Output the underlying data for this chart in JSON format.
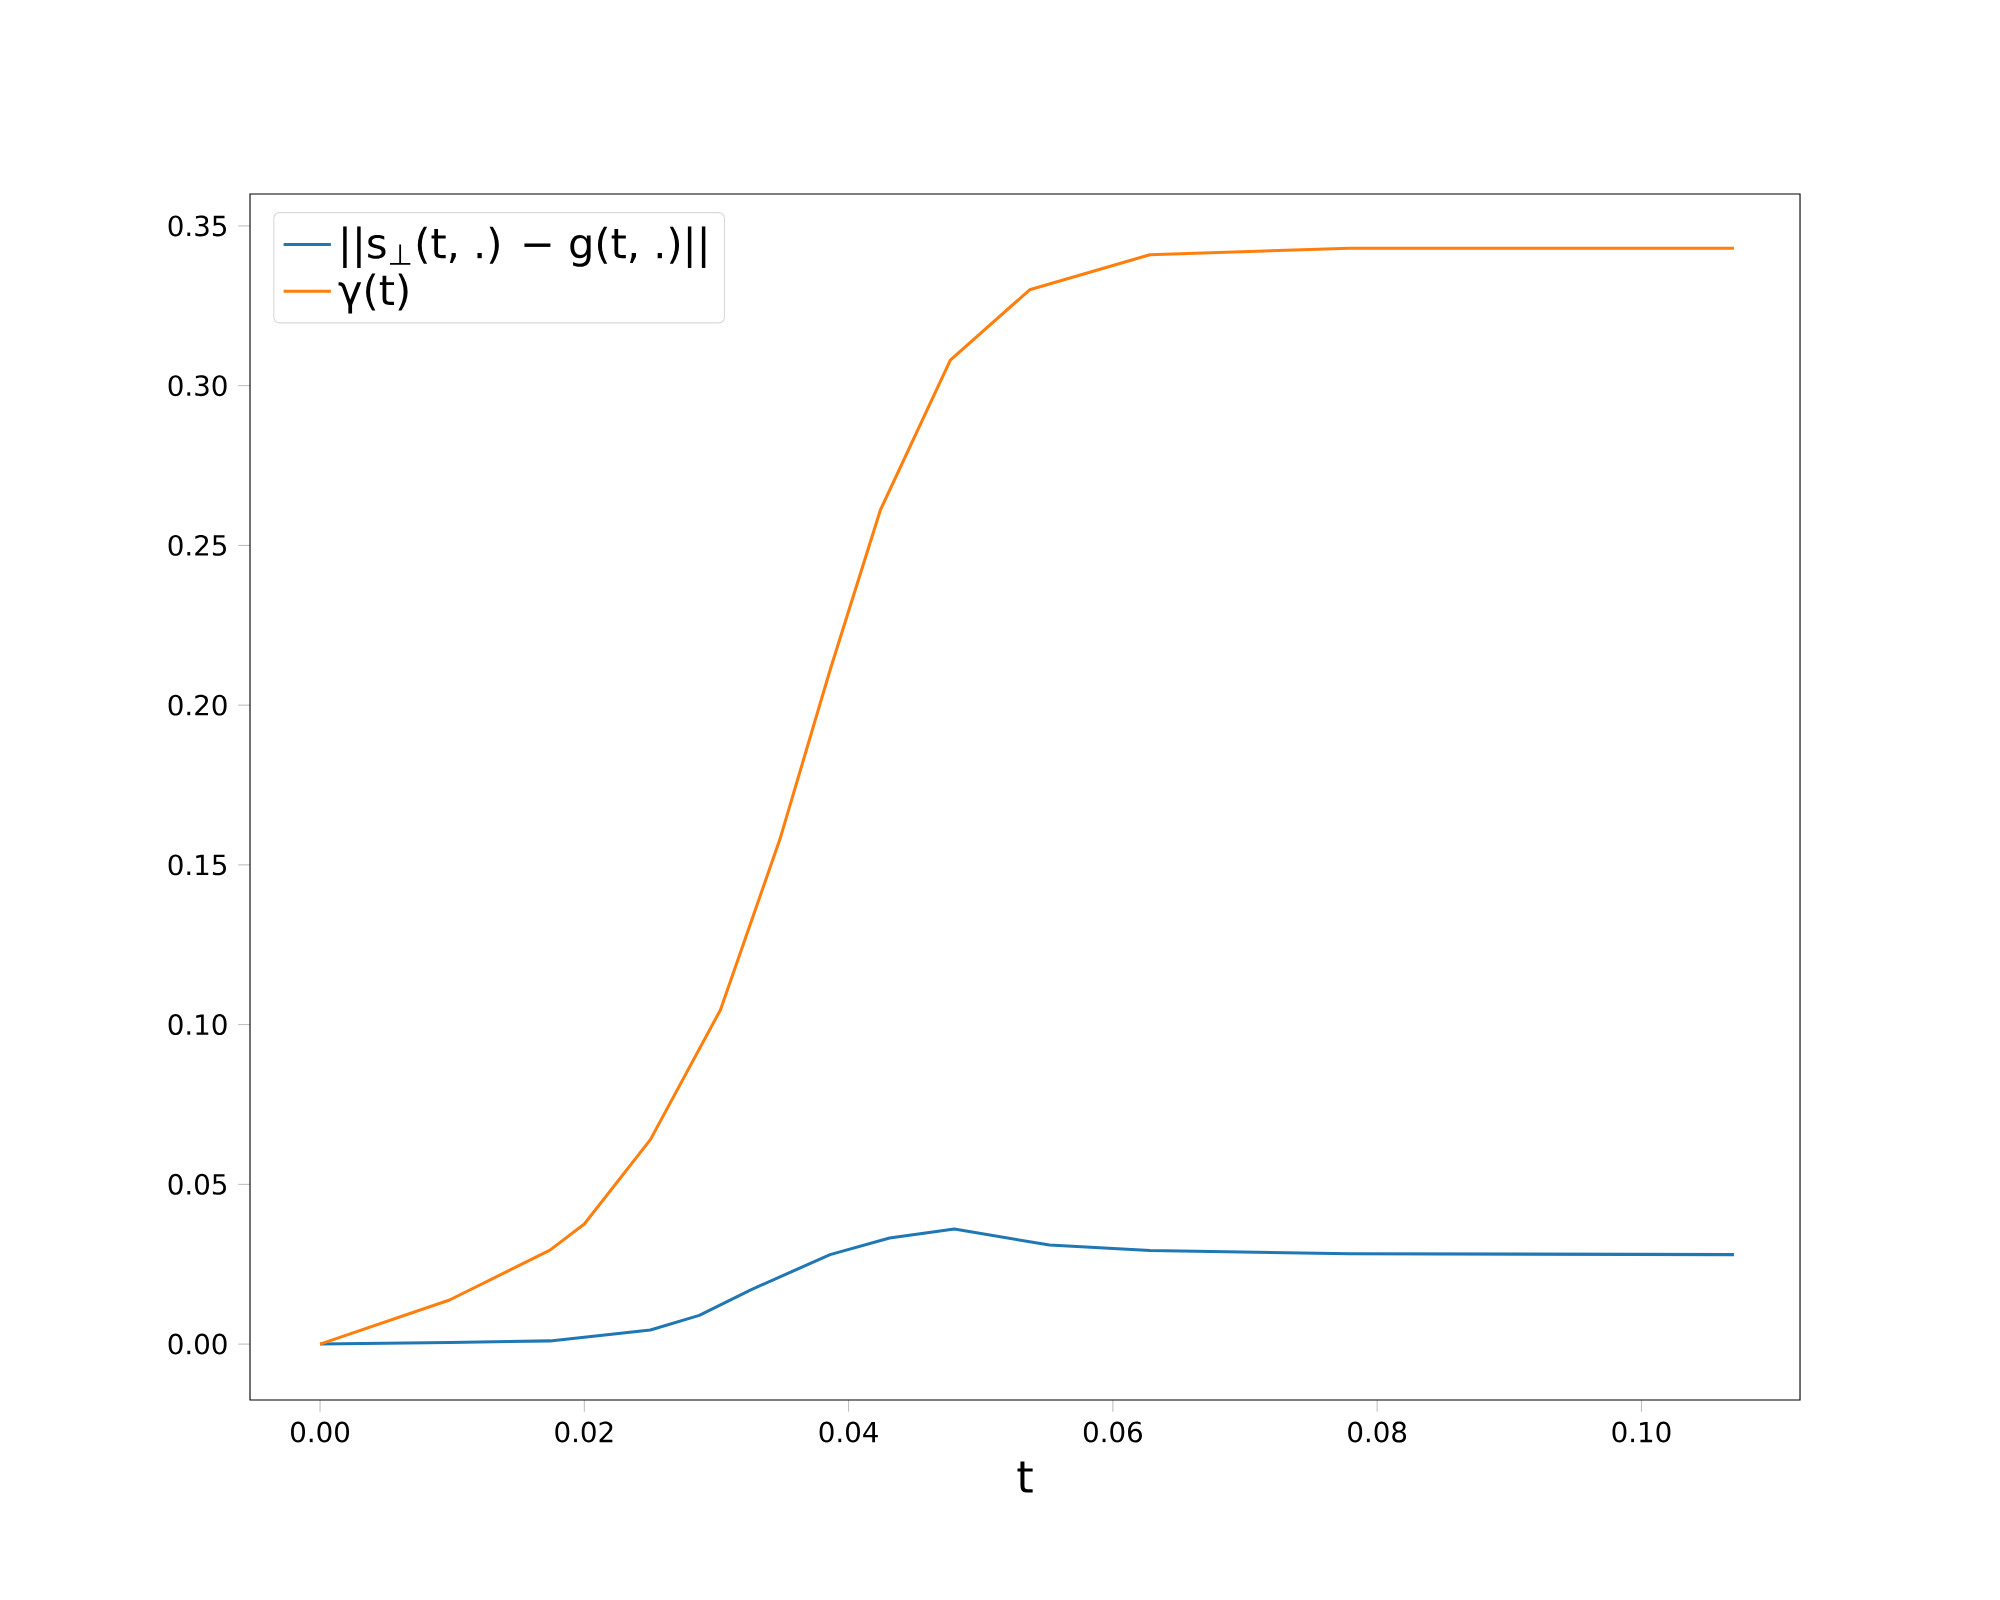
{
  "chart_data": {
    "type": "line",
    "xlabel": "t",
    "xlim": [
      -0.0053,
      0.112
    ],
    "ylim": [
      -0.0175,
      0.36
    ],
    "xticks": [
      {
        "value": 0,
        "label": "0.00"
      },
      {
        "value": 0.02,
        "label": "0.02"
      },
      {
        "value": 0.04,
        "label": "0.04"
      },
      {
        "value": 0.06,
        "label": "0.06"
      },
      {
        "value": 0.08,
        "label": "0.08"
      },
      {
        "value": 0.1,
        "label": "0.10"
      }
    ],
    "yticks": [
      {
        "value": 0,
        "label": "0.00"
      },
      {
        "value": 0.05,
        "label": "0.05"
      },
      {
        "value": 0.1,
        "label": "0.10"
      },
      {
        "value": 0.15,
        "label": "0.15"
      },
      {
        "value": 0.2,
        "label": "0.20"
      },
      {
        "value": 0.25,
        "label": "0.25"
      },
      {
        "value": 0.3,
        "label": "0.30"
      },
      {
        "value": 0.35,
        "label": "0.35"
      }
    ],
    "legend": "top left",
    "grid": false,
    "marker": "none",
    "line_style": "solid",
    "series": [
      {
        "name": "||s$_{⊥}$(t, .) − g(t, .)||",
        "color": "#1f77b4",
        "x": [
          0,
          0.0098,
          0.0174,
          0.025,
          0.0287,
          0.0326,
          0.0386,
          0.0431,
          0.048,
          0.0552,
          0.0628,
          0.0779,
          0.107
        ],
        "values": [
          0,
          0.0005,
          0.001,
          0.0044,
          0.009,
          0.017,
          0.028,
          0.0332,
          0.036,
          0.031,
          0.0293,
          0.0283,
          0.028
        ]
      },
      {
        "name": "γ(t)",
        "color": "#ff7f0e",
        "x": [
          0,
          0.0098,
          0.0174,
          0.02,
          0.025,
          0.0303,
          0.0348,
          0.0386,
          0.0424,
          0.0477,
          0.0537,
          0.0628,
          0.0779,
          0.107
        ],
        "values": [
          0,
          0.0138,
          0.0294,
          0.0376,
          0.064,
          0.1046,
          0.158,
          0.211,
          0.261,
          0.308,
          0.33,
          0.341,
          0.343,
          0.343
        ]
      }
    ]
  }
}
